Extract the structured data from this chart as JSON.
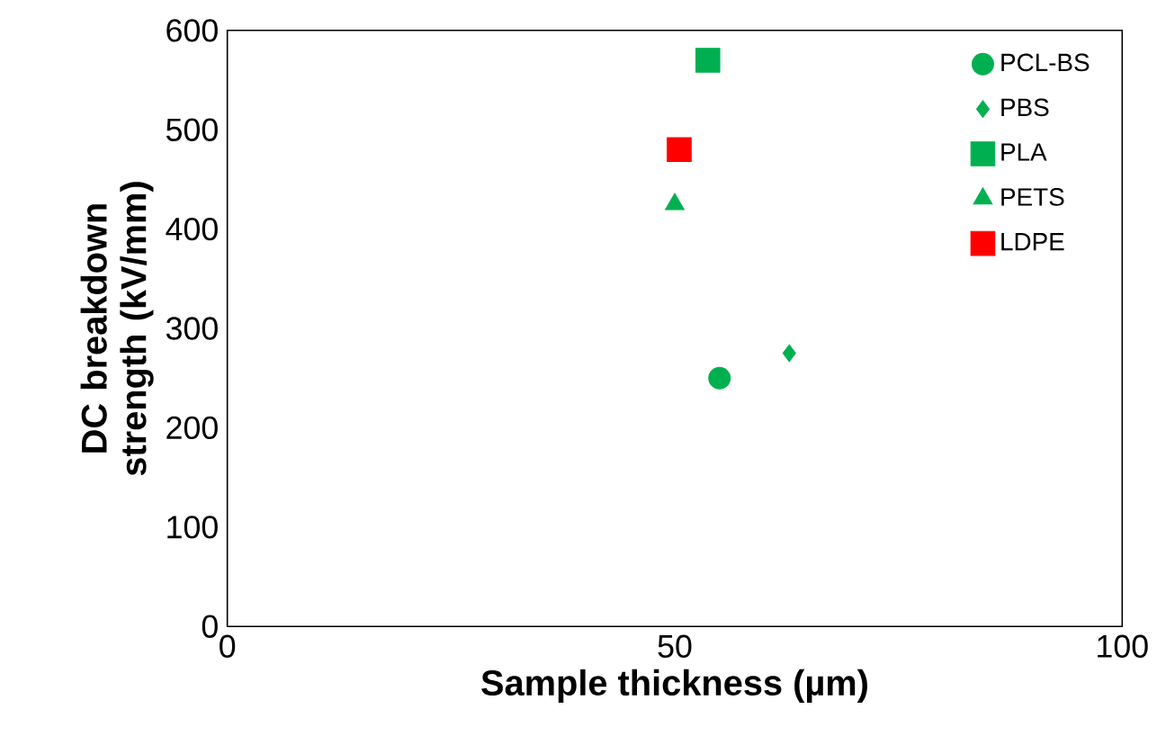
{
  "chart_data": {
    "type": "scatter",
    "xlabel": "Sample thickness (µm)",
    "ylabel": "DC breakdown strength (kV/mm)",
    "xlim": [
      0,
      100
    ],
    "xticks": [
      0,
      50,
      100
    ],
    "ylim": [
      0,
      600
    ],
    "yticks": [
      0,
      100,
      200,
      300,
      400,
      500,
      600
    ],
    "legend": "top right",
    "grid": false,
    "series": [
      {
        "name": "PCL-BS",
        "color": "#00b050",
        "marker": "circle",
        "x": [
          55.0
        ],
        "values": [
          250
        ]
      },
      {
        "name": "PBS",
        "color": "#00b050",
        "marker": "diamond",
        "x": [
          62.8
        ],
        "values": [
          275
        ]
      },
      {
        "name": "PLA",
        "color": "#00b050",
        "marker": "square",
        "x": [
          53.7
        ],
        "values": [
          570
        ]
      },
      {
        "name": "PETS",
        "color": "#00b050",
        "marker": "triangle",
        "x": [
          50.0
        ],
        "values": [
          425
        ]
      },
      {
        "name": "LDPE",
        "color": "#ff0000",
        "marker": "square",
        "x": [
          50.5
        ],
        "values": [
          480
        ]
      }
    ]
  }
}
